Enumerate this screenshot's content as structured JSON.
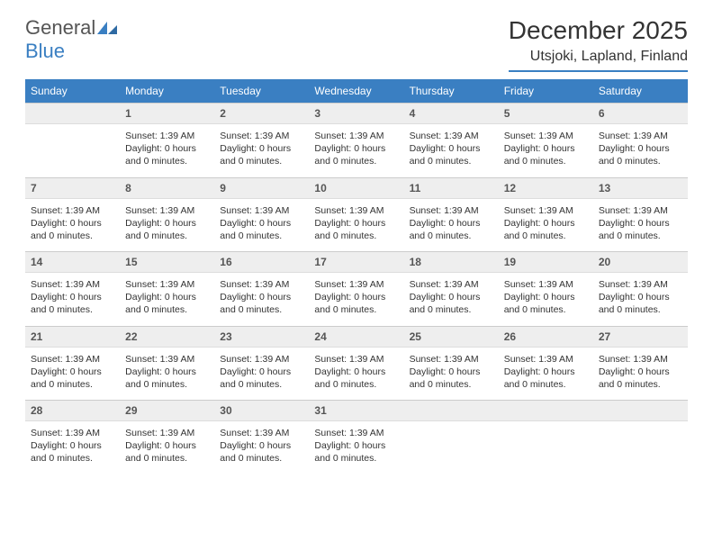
{
  "brand": {
    "general": "General",
    "blue": "Blue",
    "accent": "#3a7fc2"
  },
  "title": {
    "month": "December 2025",
    "location": "Utsjoki, Lapland, Finland"
  },
  "weekdays": [
    "Sunday",
    "Monday",
    "Tuesday",
    "Wednesday",
    "Thursday",
    "Friday",
    "Saturday"
  ],
  "colors": {
    "header_bg": "#3a7fc2",
    "header_text": "#ffffff",
    "daynum_bg": "#eeeeee",
    "text": "#333333",
    "logo_gray": "#555555"
  },
  "cell_template": {
    "line1": "Sunset: 1:39 AM",
    "line2": "Daylight: 0 hours and 0 minutes."
  },
  "weeks": [
    {
      "nums": [
        "",
        "1",
        "2",
        "3",
        "4",
        "5",
        "6"
      ],
      "fill": [
        false,
        true,
        true,
        true,
        true,
        true,
        true
      ]
    },
    {
      "nums": [
        "7",
        "8",
        "9",
        "10",
        "11",
        "12",
        "13"
      ],
      "fill": [
        true,
        true,
        true,
        true,
        true,
        true,
        true
      ]
    },
    {
      "nums": [
        "14",
        "15",
        "16",
        "17",
        "18",
        "19",
        "20"
      ],
      "fill": [
        true,
        true,
        true,
        true,
        true,
        true,
        true
      ]
    },
    {
      "nums": [
        "21",
        "22",
        "23",
        "24",
        "25",
        "26",
        "27"
      ],
      "fill": [
        true,
        true,
        true,
        true,
        true,
        true,
        true
      ]
    },
    {
      "nums": [
        "28",
        "29",
        "30",
        "31",
        "",
        "",
        ""
      ],
      "fill": [
        true,
        true,
        true,
        true,
        false,
        false,
        false
      ]
    }
  ]
}
